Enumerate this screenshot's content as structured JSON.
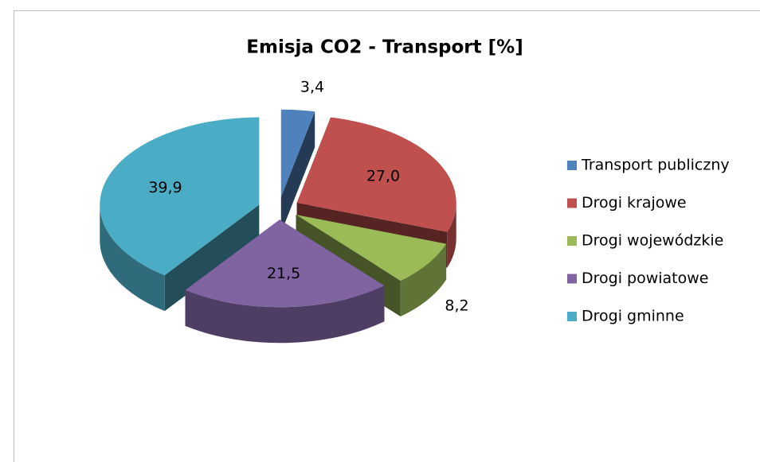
{
  "chart_data": {
    "type": "pie",
    "title": "Emisja CO2 - Transport [%]",
    "categories": [
      "Transport publiczny",
      "Drogi krajowe",
      "Drogi wojewódzkie",
      "Drogi powiatowe",
      "Drogi gminne"
    ],
    "values": [
      3.4,
      27.0,
      8.2,
      21.5,
      39.9
    ],
    "value_labels": [
      "3,4",
      "27,0",
      "8,2",
      "21,5",
      "39,9"
    ],
    "colors": [
      "#4f81bd",
      "#c0504d",
      "#9bbb59",
      "#8064a2",
      "#4bacc6"
    ],
    "legend": "right"
  }
}
